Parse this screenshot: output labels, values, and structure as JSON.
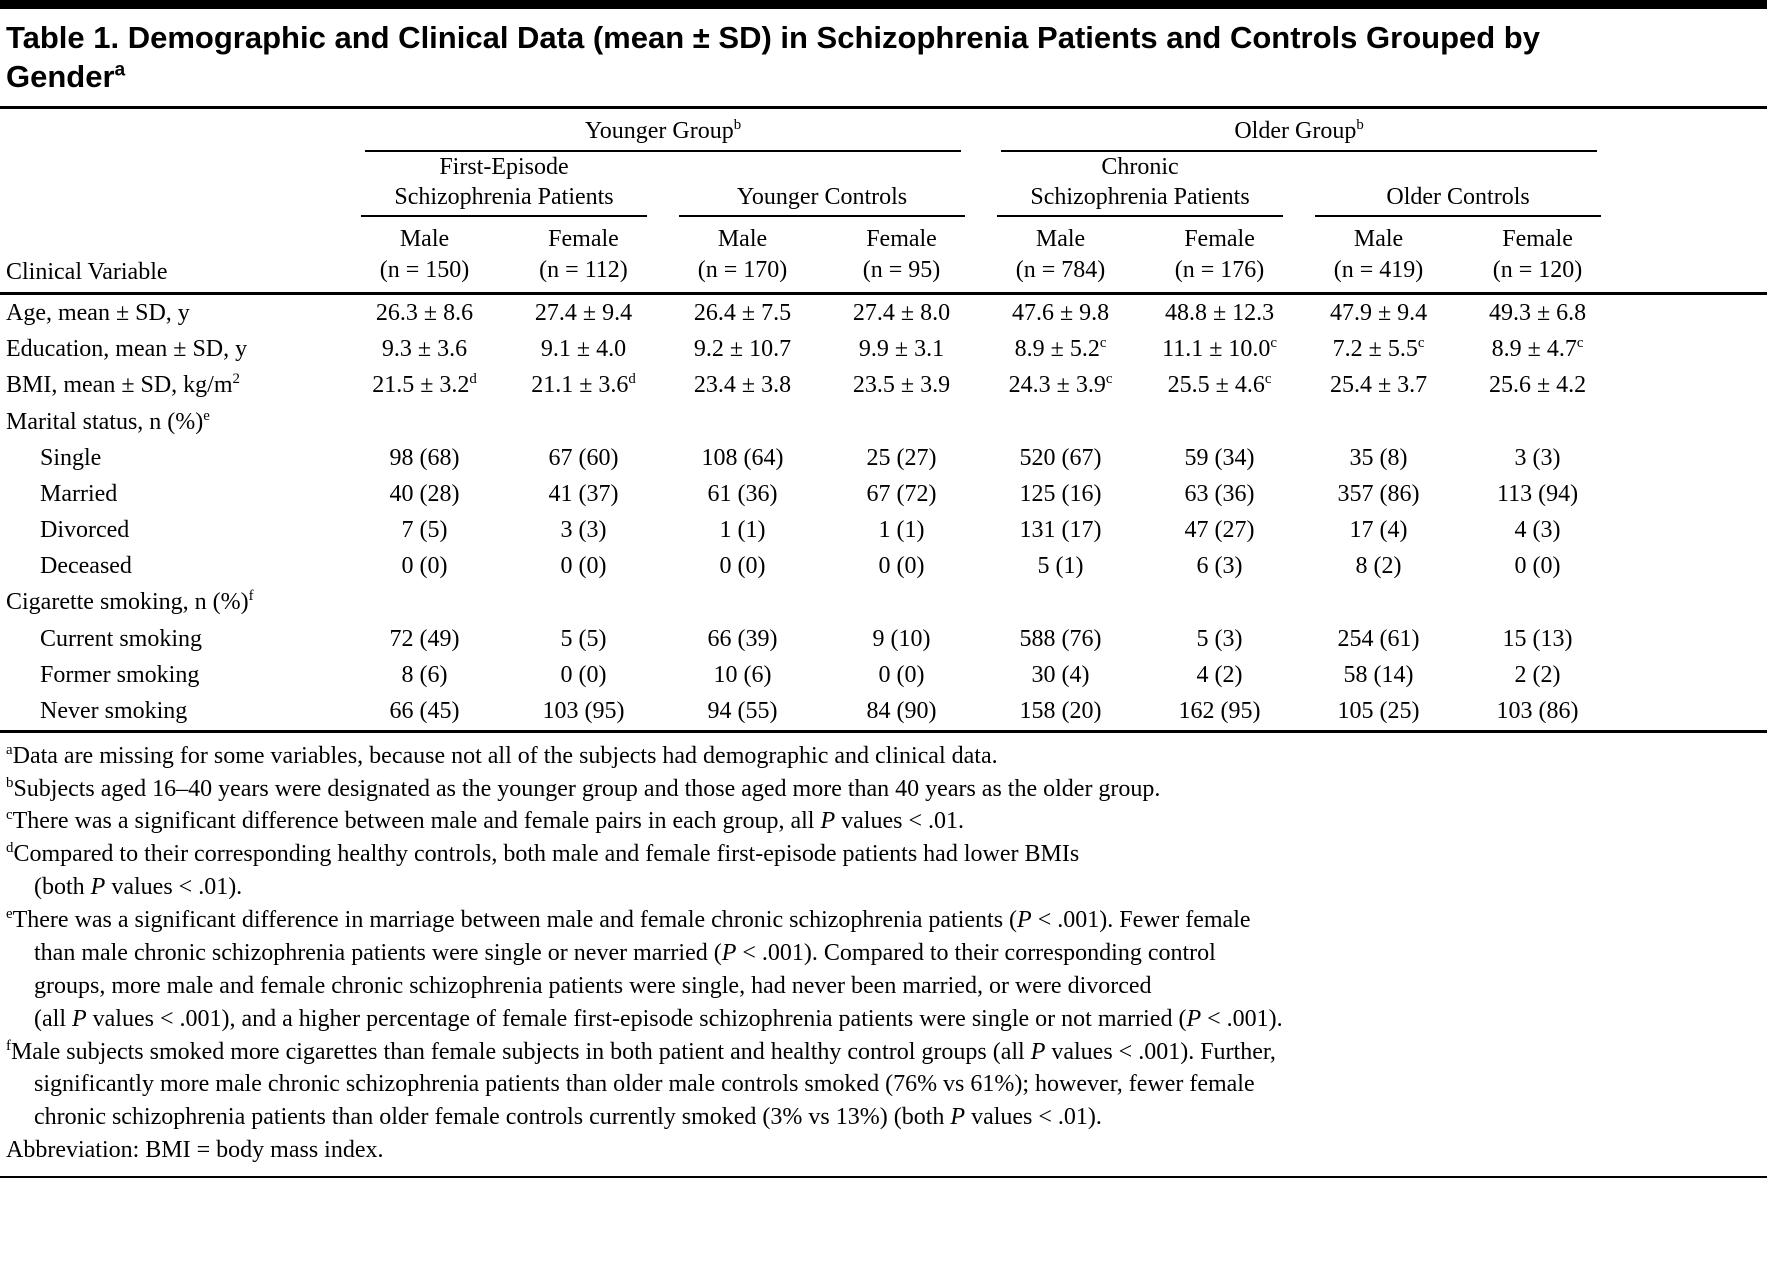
{
  "colors": {
    "ink": "#000000",
    "background": "#ffffff",
    "rule": "#000000"
  },
  "title": "Table 1. Demographic and Clinical Data (mean ± SD) in Schizophrenia Patients and Controls Grouped by\nGender^a",
  "table": {
    "stub_header": "Clinical Variable",
    "group_headers": [
      {
        "label": "Younger Group^b",
        "span": 4
      },
      {
        "label": "Older Group^b",
        "span": 4
      }
    ],
    "subgroup_headers": [
      {
        "label": "First-Episode\nSchizophrenia Patients",
        "span": 2
      },
      {
        "label": "Younger Controls",
        "span": 2
      },
      {
        "label": "Chronic\nSchizophrenia Patients",
        "span": 2
      },
      {
        "label": "Older Controls",
        "span": 2
      }
    ],
    "column_headers": [
      {
        "sex": "Male",
        "n": "(n = 150)"
      },
      {
        "sex": "Female",
        "n": "(n = 112)"
      },
      {
        "sex": "Male",
        "n": "(n = 170)"
      },
      {
        "sex": "Female",
        "n": "(n = 95)"
      },
      {
        "sex": "Male",
        "n": "(n = 784)"
      },
      {
        "sex": "Female",
        "n": "(n = 176)"
      },
      {
        "sex": "Male",
        "n": "(n = 419)"
      },
      {
        "sex": "Female",
        "n": "(n = 120)"
      }
    ],
    "rows": [
      {
        "label": "Age, mean ± SD, y",
        "indent": 0,
        "section": false,
        "values": [
          "26.3 ± 8.6",
          "27.4 ± 9.4",
          "26.4 ± 7.5",
          "27.4 ± 8.0",
          "47.6 ± 9.8",
          "48.8 ± 12.3",
          "47.9 ± 9.4",
          "49.3 ± 6.8"
        ]
      },
      {
        "label": "Education, mean ± SD, y",
        "indent": 0,
        "section": false,
        "values": [
          "9.3 ± 3.6",
          "9.1 ± 4.0",
          "9.2 ± 10.7",
          "9.9 ± 3.1",
          "8.9 ± 5.2^c",
          "11.1 ± 10.0^c",
          "7.2 ± 5.5^c",
          "8.9 ± 4.7^c"
        ]
      },
      {
        "label": "BMI, mean ± SD, kg/m^2",
        "indent": 0,
        "section": false,
        "values": [
          "21.5 ± 3.2^d",
          "21.1 ± 3.6^d",
          "23.4 ± 3.8",
          "23.5 ± 3.9",
          "24.3 ± 3.9^c",
          "25.5 ± 4.6^c",
          "25.4 ± 3.7",
          "25.6 ± 4.2"
        ]
      },
      {
        "label": "Marital status, n (%)^e",
        "indent": 0,
        "section": true,
        "values": []
      },
      {
        "label": "Single",
        "indent": 1,
        "section": false,
        "values": [
          "98 (68)",
          "67 (60)",
          "108 (64)",
          "25 (27)",
          "520 (67)",
          "59 (34)",
          "35 (8)",
          "3 (3)"
        ]
      },
      {
        "label": "Married",
        "indent": 1,
        "section": false,
        "values": [
          "40 (28)",
          "41 (37)",
          "61 (36)",
          "67 (72)",
          "125 (16)",
          "63 (36)",
          "357 (86)",
          "113 (94)"
        ]
      },
      {
        "label": "Divorced",
        "indent": 1,
        "section": false,
        "values": [
          "7 (5)",
          "3 (3)",
          "1 (1)",
          "1 (1)",
          "131 (17)",
          "47 (27)",
          "17 (4)",
          "4 (3)"
        ]
      },
      {
        "label": "Deceased",
        "indent": 1,
        "section": false,
        "values": [
          "0 (0)",
          "0 (0)",
          "0 (0)",
          "0 (0)",
          "5 (1)",
          "6 (3)",
          "8 (2)",
          "0 (0)"
        ]
      },
      {
        "label": "Cigarette smoking, n (%)^f",
        "indent": 0,
        "section": true,
        "values": []
      },
      {
        "label": "Current smoking",
        "indent": 1,
        "section": false,
        "values": [
          "72 (49)",
          "5 (5)",
          "66 (39)",
          "9 (10)",
          "588 (76)",
          "5 (3)",
          "254 (61)",
          "15 (13)"
        ]
      },
      {
        "label": "Former smoking",
        "indent": 1,
        "section": false,
        "values": [
          "8 (6)",
          "0 (0)",
          "10 (6)",
          "0 (0)",
          "30 (4)",
          "4 (2)",
          "58 (14)",
          "2 (2)"
        ]
      },
      {
        "label": "Never smoking",
        "indent": 1,
        "section": false,
        "values": [
          "66 (45)",
          "103 (95)",
          "94 (55)",
          "84 (90)",
          "158 (20)",
          "162 (95)",
          "105 (25)",
          "103 (86)"
        ]
      }
    ]
  },
  "footnotes": [
    {
      "marker": "a",
      "text": "Data are missing for some variables, because not all of the subjects had demographic and clinical data."
    },
    {
      "marker": "b",
      "text": "Subjects aged 16–40 years were designated as the younger group and those aged more than 40 years as the older group."
    },
    {
      "marker": "c",
      "text": "There was a significant difference between male and female pairs in each group, all *P* values < .01."
    },
    {
      "marker": "d",
      "text": "Compared to their corresponding healthy controls, both male and female first-episode patients had lower BMIs\n(both *P* values < .01)."
    },
    {
      "marker": "e",
      "text": "There was a significant difference in marriage between male and female chronic schizophrenia patients (*P* < .001). Fewer female\nthan male chronic schizophrenia patients were single or never married (*P* < .001). Compared to their corresponding control\ngroups, more male and female chronic schizophrenia patients were single, had never been married, or were divorced\n(all *P* values < .001), and a higher percentage of female first-episode schizophrenia patients were single or not married (*P* < .001)."
    },
    {
      "marker": "f",
      "text": "Male subjects smoked more cigarettes than female subjects in both patient and healthy control groups (all *P* values < .001). Further,\nsignificantly more male chronic schizophrenia patients than older male controls smoked (76% vs 61%); however, fewer female\nchronic schizophrenia patients than older female controls currently smoked (3% vs 13%) (both *P* values < .01)."
    }
  ],
  "abbreviation": "Abbreviation: BMI = body mass index."
}
